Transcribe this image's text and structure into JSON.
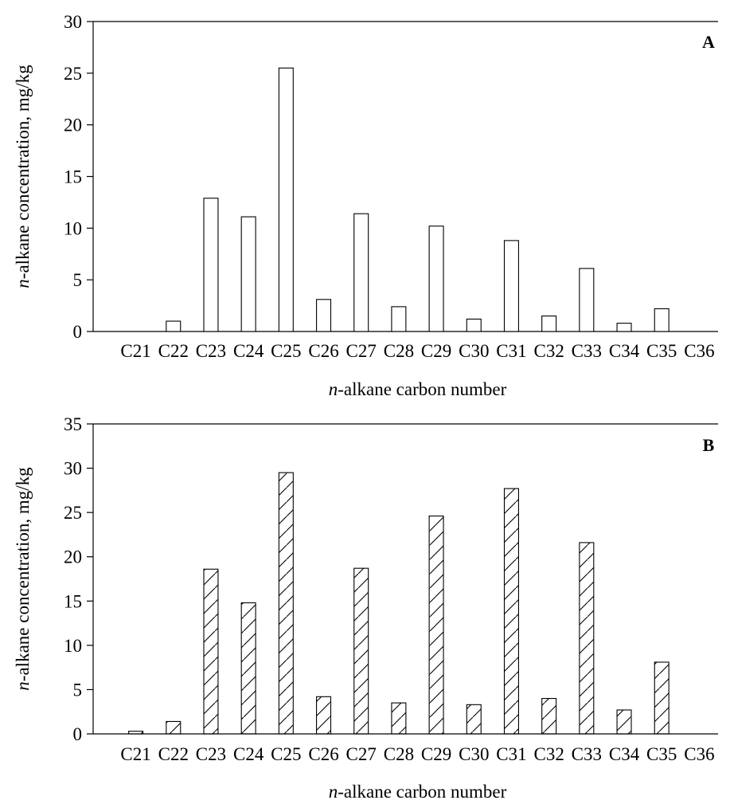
{
  "chart_data": [
    {
      "type": "bar",
      "panel_label": "A",
      "categories": [
        "C21",
        "C22",
        "C23",
        "C24",
        "C25",
        "C26",
        "C27",
        "C28",
        "C29",
        "C30",
        "C31",
        "C32",
        "C33",
        "C34",
        "C35",
        "C36"
      ],
      "series": [
        {
          "values": [
            0,
            1.0,
            12.9,
            11.1,
            25.5,
            3.1,
            11.4,
            2.4,
            10.2,
            1.2,
            8.8,
            1.5,
            6.1,
            0.8,
            2.2,
            0
          ],
          "fill": "none"
        }
      ],
      "xlabel": {
        "italic": "n",
        "rest": "-alkane carbon number"
      },
      "ylabel": {
        "italic": "n",
        "rest": "-alkane concentration, mg/kg"
      },
      "ylim": [
        0,
        30
      ],
      "yticks": [
        "0",
        "5",
        "10",
        "15",
        "20",
        "25",
        "30"
      ],
      "grid": false,
      "colors": {
        "bar_stroke": "#000000",
        "bar_fill": "#ffffff"
      }
    },
    {
      "type": "bar",
      "panel_label": "B",
      "categories": [
        "C21",
        "C22",
        "C23",
        "C24",
        "C25",
        "C26",
        "C27",
        "C28",
        "C29",
        "C30",
        "C31",
        "C32",
        "C33",
        "C34",
        "C35",
        "C36"
      ],
      "series": [
        {
          "values": [
            0.3,
            1.4,
            18.6,
            14.8,
            29.5,
            4.2,
            18.7,
            3.5,
            24.6,
            3.3,
            27.7,
            4.0,
            21.6,
            2.7,
            8.1,
            0
          ],
          "fill": "diagonal-hatch"
        }
      ],
      "xlabel": {
        "italic": "n",
        "rest": "-alkane carbon number"
      },
      "ylabel": {
        "italic": "n",
        "rest": "-alkane concentration, mg/kg"
      },
      "ylim": [
        0,
        35
      ],
      "yticks": [
        "0",
        "5",
        "10",
        "15",
        "20",
        "25",
        "30",
        "35"
      ],
      "grid": false,
      "colors": {
        "bar_stroke": "#000000",
        "bar_fill": "#ffffff"
      }
    }
  ]
}
